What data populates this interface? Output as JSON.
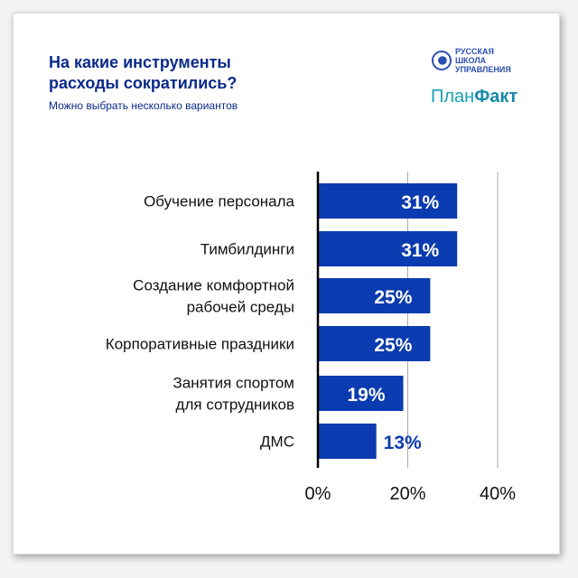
{
  "header": {
    "title_line1": "На какие инструменты",
    "title_line2": "расходы сократились?",
    "subtitle": "Можно выбрать несколько вариантов"
  },
  "logos": {
    "school": "РУССКАЯ ШКОЛА УПРАВЛЕНИЯ",
    "planfakt_a": "План",
    "planfakt_b": "Факт"
  },
  "chart_data": {
    "type": "bar",
    "orientation": "horizontal",
    "categories": [
      [
        "Обучение персонала"
      ],
      [
        "Тимбилдинги"
      ],
      [
        "Создание комфортной",
        "рабочей среды"
      ],
      [
        "Корпоративные праздники"
      ],
      [
        "Занятия спортом",
        "для сотрудников"
      ],
      [
        "ДМС"
      ]
    ],
    "values": [
      31,
      31,
      25,
      25,
      19,
      13
    ],
    "labels": [
      "31%",
      "31%",
      "25%",
      "25%",
      "19%",
      "13%"
    ],
    "xlim": [
      0,
      40
    ],
    "ticks": [
      "0%",
      "20%",
      "40%"
    ],
    "grid": true,
    "bar_color": "#0b3bb0",
    "label_inside_color": "#ffffff",
    "label_outside_color": "#0b3bb0"
  }
}
